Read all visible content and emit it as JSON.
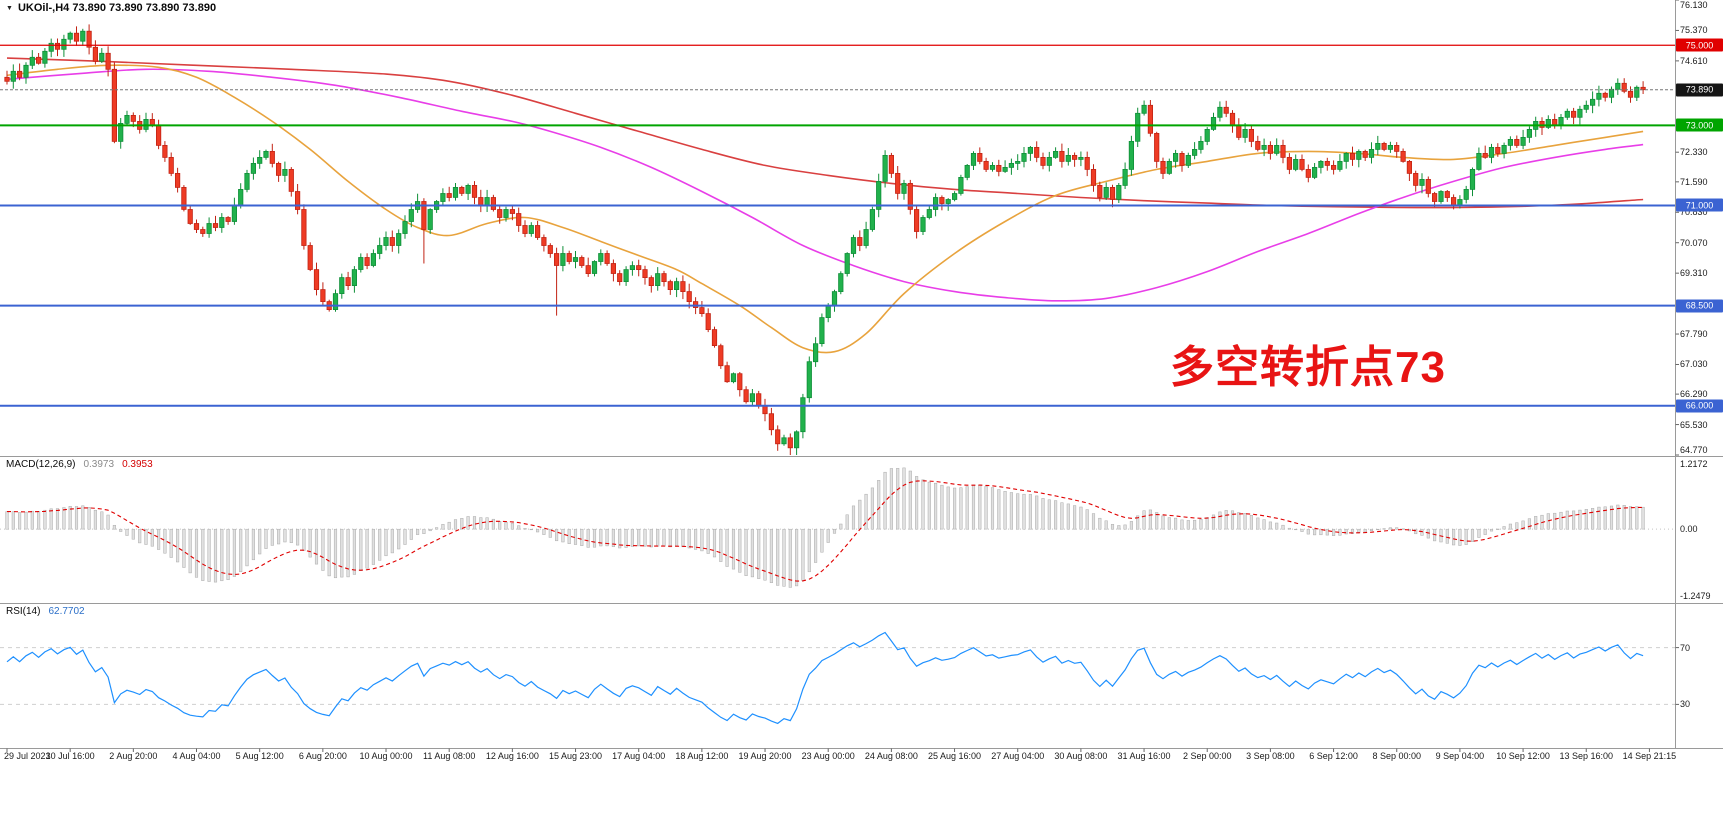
{
  "window": {
    "header": "UKOil-,H4 73.890 73.890 73.890 73.890",
    "symbol": "UKOil-",
    "timeframe": "H4"
  },
  "annotation": {
    "text": "多空转折点73",
    "color": "#e81414"
  },
  "indicators": {
    "macd": {
      "title": "MACD(12,26,9)",
      "value_main": "0.3973",
      "value_signal": "0.3953"
    },
    "rsi": {
      "title": "RSI(14)",
      "value": "62.7702"
    }
  },
  "price_axis": {
    "labels": [
      {
        "text": "76.130",
        "value": 76.13
      },
      {
        "text": "75.370",
        "value": 75.37
      },
      {
        "text": "74.610",
        "value": 74.61
      },
      {
        "text": "72.330",
        "value": 72.33
      },
      {
        "text": "71.590",
        "value": 71.59
      },
      {
        "text": "70.830",
        "value": 70.83
      },
      {
        "text": "70.070",
        "value": 70.07
      },
      {
        "text": "69.310",
        "value": 69.31
      },
      {
        "text": "67.790",
        "value": 67.79
      },
      {
        "text": "67.030",
        "value": 67.03
      },
      {
        "text": "66.290",
        "value": 66.29
      },
      {
        "text": "65.530",
        "value": 65.53
      },
      {
        "text": "64.770",
        "value": 64.77
      }
    ],
    "badges": [
      {
        "text": "75.000",
        "price": 75.0,
        "bg": "#e00000"
      },
      {
        "text": "73.890",
        "price": 73.89,
        "bg": "#151515"
      },
      {
        "text": "73.000",
        "price": 73.0,
        "bg": "#00a400"
      },
      {
        "text": "71.000",
        "price": 71.0,
        "bg": "#3b63d2"
      },
      {
        "text": "68.500",
        "price": 68.5,
        "bg": "#3b63d2"
      },
      {
        "text": "66.000",
        "price": 66.0,
        "bg": "#3b63d2"
      }
    ]
  },
  "colors": {
    "candle_up_fill": "#21b14c",
    "candle_up_stroke": "#0f8f38",
    "candle_dn_fill": "#ee3b24",
    "candle_dn_stroke": "#c22314",
    "macd_bar_fill": "#e0e0e0",
    "macd_bar_stroke": "#aaaaaa",
    "macd_signal": "#e00000",
    "rsi_line": "#1e90ff",
    "separator": "#9a9a9a"
  },
  "chart_data": [
    {
      "type": "candlestick",
      "symbol": "UKOil-",
      "timeframe": "H4",
      "ylim": [
        64.77,
        76.13
      ],
      "bars_per_label": 10,
      "x_labels": [
        "29 Jul 2021",
        "30 Jul 16:00",
        "2 Aug 20:00",
        "4 Aug 04:00",
        "5 Aug 12:00",
        "6 Aug 20:00",
        "10 Aug 00:00",
        "11 Aug 08:00",
        "12 Aug 16:00",
        "15 Aug 23:00",
        "17 Aug 04:00",
        "18 Aug 12:00",
        "19 Aug 20:00",
        "23 Aug 00:00",
        "24 Aug 08:00",
        "25 Aug 16:00",
        "27 Aug 04:00",
        "30 Aug 08:00",
        "31 Aug 16:00",
        "2 Sep 00:00",
        "3 Sep 08:00",
        "6 Sep 12:00",
        "8 Sep 00:00",
        "9 Sep 04:00",
        "10 Sep 12:00",
        "13 Sep 16:00",
        "14 Sep 21:15"
      ],
      "first_open": 74.2,
      "closes": [
        74.1,
        74.35,
        74.2,
        74.5,
        74.7,
        74.55,
        74.85,
        75.05,
        74.9,
        75.15,
        75.3,
        75.1,
        75.35,
        74.95,
        74.6,
        74.8,
        74.4,
        72.6,
        73.05,
        73.25,
        73.1,
        72.9,
        73.15,
        73.0,
        72.5,
        72.2,
        71.8,
        71.45,
        70.9,
        70.55,
        70.4,
        70.3,
        70.55,
        70.45,
        70.7,
        70.6,
        71.0,
        71.4,
        71.8,
        72.05,
        72.2,
        72.35,
        72.05,
        71.75,
        71.9,
        71.35,
        70.9,
        70.0,
        69.4,
        68.9,
        68.6,
        68.4,
        68.8,
        69.2,
        69.0,
        69.4,
        69.7,
        69.5,
        69.8,
        70.0,
        70.2,
        70.0,
        70.3,
        70.6,
        70.9,
        71.1,
        70.4,
        70.9,
        71.1,
        71.3,
        71.2,
        71.45,
        71.3,
        71.5,
        71.2,
        71.0,
        71.2,
        70.9,
        70.7,
        70.9,
        70.8,
        70.5,
        70.3,
        70.5,
        70.2,
        70.0,
        69.8,
        69.5,
        69.8,
        69.6,
        69.7,
        69.5,
        69.3,
        69.6,
        69.8,
        69.55,
        69.3,
        69.1,
        69.4,
        69.5,
        69.4,
        69.2,
        69.0,
        69.3,
        69.1,
        68.9,
        69.1,
        68.85,
        68.6,
        68.45,
        68.3,
        67.9,
        67.5,
        67.0,
        66.6,
        66.8,
        66.4,
        66.1,
        66.3,
        66.0,
        65.8,
        65.4,
        65.05,
        65.2,
        64.95,
        65.35,
        66.2,
        67.1,
        67.55,
        68.2,
        68.5,
        68.85,
        69.3,
        69.8,
        70.2,
        70.0,
        70.4,
        70.9,
        71.6,
        72.25,
        71.8,
        71.3,
        71.55,
        70.9,
        70.35,
        70.7,
        70.9,
        71.2,
        71.05,
        71.15,
        71.3,
        71.7,
        72.0,
        72.3,
        72.1,
        71.9,
        72.0,
        71.85,
        71.95,
        72.05,
        72.1,
        72.3,
        72.45,
        72.2,
        72.0,
        72.2,
        72.35,
        72.1,
        72.25,
        72.15,
        72.2,
        71.9,
        71.5,
        71.2,
        71.45,
        71.15,
        71.5,
        71.9,
        72.6,
        73.3,
        73.5,
        72.8,
        72.1,
        71.8,
        72.1,
        72.3,
        72.0,
        72.25,
        72.4,
        72.6,
        72.9,
        73.2,
        73.45,
        73.3,
        73.0,
        72.7,
        72.9,
        72.6,
        72.4,
        72.5,
        72.3,
        72.5,
        72.2,
        71.9,
        72.15,
        71.9,
        71.7,
        71.95,
        72.1,
        72.0,
        71.9,
        72.1,
        72.3,
        72.15,
        72.35,
        72.2,
        72.4,
        72.55,
        72.4,
        72.5,
        72.35,
        72.1,
        71.8,
        71.5,
        71.65,
        71.3,
        71.1,
        71.35,
        71.2,
        71.0,
        71.15,
        71.4,
        71.9,
        72.3,
        72.2,
        72.45,
        72.3,
        72.5,
        72.65,
        72.5,
        72.7,
        72.9,
        73.1,
        72.95,
        73.15,
        73.0,
        73.2,
        73.35,
        73.2,
        73.4,
        73.5,
        73.65,
        73.8,
        73.7,
        73.9,
        74.05,
        73.85,
        73.7,
        73.95,
        73.89
      ],
      "wick_overrides": {
        "12": {
          "high": 75.41
        },
        "66": {
          "low": 69.55
        },
        "87": {
          "low": 68.25
        },
        "124": {
          "low": 64.77
        },
        "139": {
          "high": 72.38
        },
        "180": {
          "high": 73.62
        }
      },
      "moving_averages": [
        {
          "name": "slow-red",
          "color": "#d94040",
          "points": [
            [
              0,
              74.68
            ],
            [
              15,
              74.6
            ],
            [
              30,
              74.5
            ],
            [
              45,
              74.4
            ],
            [
              60,
              74.28
            ],
            [
              70,
              74.1
            ],
            [
              80,
              73.75
            ],
            [
              90,
              73.3
            ],
            [
              100,
              72.85
            ],
            [
              110,
              72.4
            ],
            [
              120,
              72.0
            ],
            [
              130,
              71.75
            ],
            [
              140,
              71.55
            ],
            [
              150,
              71.4
            ],
            [
              160,
              71.3
            ],
            [
              170,
              71.2
            ],
            [
              180,
              71.12
            ],
            [
              190,
              71.06
            ],
            [
              200,
              71.0
            ],
            [
              210,
              70.97
            ],
            [
              220,
              70.95
            ],
            [
              230,
              70.95
            ],
            [
              240,
              70.98
            ],
            [
              250,
              71.05
            ],
            [
              259,
              71.15
            ]
          ]
        },
        {
          "name": "mid-magenta",
          "color": "#e83ee8",
          "points": [
            [
              0,
              74.15
            ],
            [
              12,
              74.3
            ],
            [
              22,
              74.4
            ],
            [
              32,
              74.35
            ],
            [
              42,
              74.2
            ],
            [
              52,
              74.0
            ],
            [
              62,
              73.7
            ],
            [
              72,
              73.35
            ],
            [
              80,
              73.1
            ],
            [
              86,
              72.85
            ],
            [
              94,
              72.45
            ],
            [
              102,
              71.95
            ],
            [
              110,
              71.35
            ],
            [
              118,
              70.7
            ],
            [
              126,
              70.0
            ],
            [
              134,
              69.5
            ],
            [
              142,
              69.1
            ],
            [
              150,
              68.85
            ],
            [
              158,
              68.7
            ],
            [
              166,
              68.62
            ],
            [
              174,
              68.68
            ],
            [
              182,
              68.95
            ],
            [
              190,
              69.35
            ],
            [
              198,
              69.85
            ],
            [
              206,
              70.3
            ],
            [
              214,
              70.8
            ],
            [
              221,
              71.2
            ],
            [
              229,
              71.6
            ],
            [
              237,
              71.95
            ],
            [
              245,
              72.2
            ],
            [
              253,
              72.4
            ],
            [
              259,
              72.52
            ]
          ]
        },
        {
          "name": "fast-orange",
          "color": "#e8a33d",
          "points": [
            [
              0,
              74.25
            ],
            [
              8,
              74.4
            ],
            [
              16,
              74.5
            ],
            [
              24,
              74.45
            ],
            [
              30,
              74.2
            ],
            [
              36,
              73.7
            ],
            [
              42,
              73.1
            ],
            [
              48,
              72.4
            ],
            [
              54,
              71.6
            ],
            [
              60,
              70.9
            ],
            [
              65,
              70.45
            ],
            [
              70,
              70.25
            ],
            [
              76,
              70.55
            ],
            [
              82,
              70.7
            ],
            [
              88,
              70.45
            ],
            [
              94,
              70.1
            ],
            [
              100,
              69.75
            ],
            [
              106,
              69.4
            ],
            [
              110,
              69.05
            ],
            [
              116,
              68.5
            ],
            [
              121,
              67.95
            ],
            [
              126,
              67.45
            ],
            [
              131,
              67.35
            ],
            [
              136,
              67.8
            ],
            [
              142,
              68.8
            ],
            [
              150,
              69.8
            ],
            [
              158,
              70.6
            ],
            [
              166,
              71.25
            ],
            [
              174,
              71.6
            ],
            [
              182,
              71.9
            ],
            [
              190,
              72.1
            ],
            [
              198,
              72.3
            ],
            [
              206,
              72.35
            ],
            [
              214,
              72.3
            ],
            [
              221,
              72.2
            ],
            [
              229,
              72.15
            ],
            [
              237,
              72.3
            ],
            [
              245,
              72.5
            ],
            [
              253,
              72.7
            ],
            [
              259,
              72.85
            ]
          ]
        }
      ],
      "hlines": [
        {
          "price": 75.0,
          "color": "#e00000",
          "width": 1.2
        },
        {
          "price": 73.0,
          "color": "#00a400",
          "width": 2
        },
        {
          "price": 71.0,
          "color": "#3b63d2",
          "width": 2
        },
        {
          "price": 68.5,
          "color": "#3b63d2",
          "width": 2
        },
        {
          "price": 66.0,
          "color": "#3b63d2",
          "width": 2
        }
      ],
      "current_price": 73.89
    },
    {
      "type": "macd",
      "label": "MACD(12,26,9)",
      "fast": 12,
      "slow": 26,
      "signal_period": 9,
      "seed_fast": 74.05,
      "seed_slow": 73.7,
      "axis_max": 1.2172,
      "axis_min": -1.2479,
      "axis_labels": [
        "1.2172",
        "0.00",
        "-1.2479"
      ],
      "current_values": [
        0.3973,
        0.3953
      ],
      "derived_from": "chart_data[0].closes"
    },
    {
      "type": "rsi",
      "label": "RSI(14)",
      "period": 14,
      "seed_gain": 0.12,
      "seed_loss": 0.08,
      "levels": [
        30,
        70
      ],
      "current_value": 62.7702,
      "derived_from": "chart_data[0].closes"
    }
  ]
}
